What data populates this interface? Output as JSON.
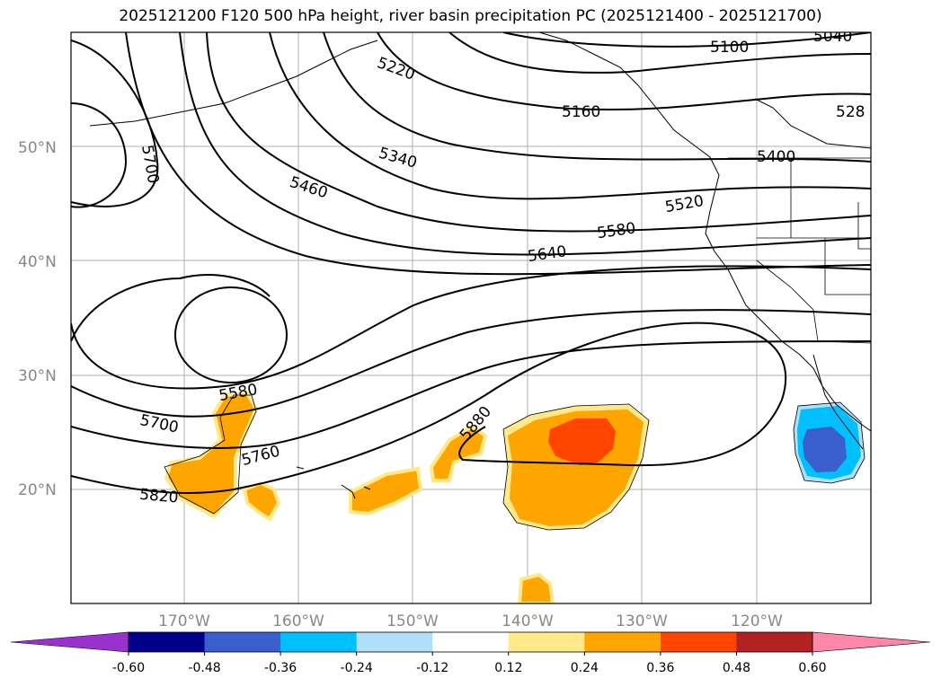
{
  "title": "2025121200 F120 500 hPa height, river basin precipitation PC (2025121400 - 2025121700)",
  "lat_labels": [
    "50°N",
    "40°N",
    "30°N",
    "20°N"
  ],
  "lon_labels": [
    "170°W",
    "160°W",
    "150°W",
    "140°W",
    "130°W",
    "120°W"
  ],
  "contour_labels": [
    "5100",
    "5040",
    "5220",
    "5160",
    "528",
    "5700",
    "5340",
    "5400",
    "5460",
    "5520",
    "5580",
    "5640",
    "5580",
    "5880",
    "5700",
    "5760",
    "5820"
  ],
  "colorbar": {
    "ticks": [
      "-0.60",
      "-0.48",
      "-0.36",
      "-0.24",
      "-0.12",
      "0.12",
      "0.24",
      "0.36",
      "0.48",
      "0.60"
    ],
    "colors": [
      "#9932cc",
      "#00008b",
      "#3a5fcd",
      "#00bfff",
      "#afe0f8",
      "#ffffff",
      "#ffe98a",
      "#ffa500",
      "#ff4500",
      "#b22222",
      "#ff88aa"
    ]
  }
}
